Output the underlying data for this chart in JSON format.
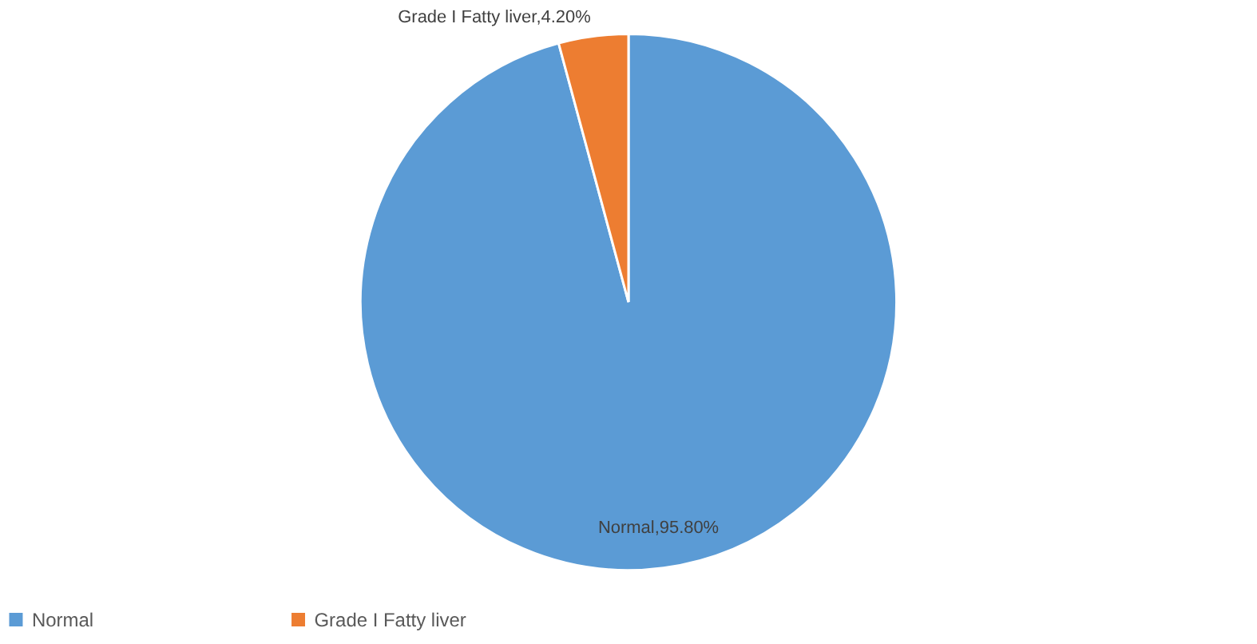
{
  "chart_data": {
    "type": "pie",
    "categories": [
      "Normal",
      "Grade I Fatty liver"
    ],
    "values": [
      95.8,
      4.2
    ],
    "colors": [
      "#5b9bd5",
      "#ed7d31"
    ],
    "value_labels": [
      "Normal,95.80%",
      "Grade I Fatty liver,4.20%"
    ],
    "legend": "bottom"
  }
}
